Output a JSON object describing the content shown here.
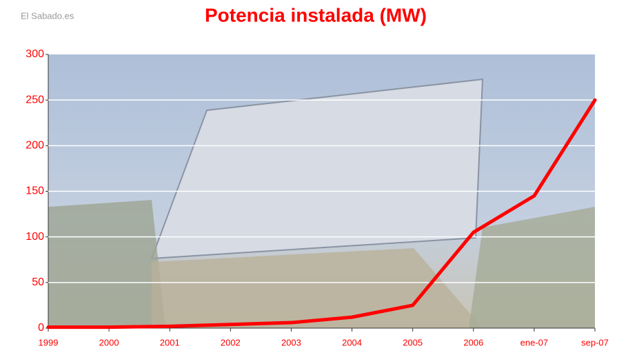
{
  "source": "El Sabado.es",
  "chart_data": {
    "type": "line",
    "title": "Potencia instalada (MW)",
    "categories": [
      "1999",
      "2000",
      "2001",
      "2002",
      "2003",
      "2004",
      "2005",
      "2006",
      "ene-07",
      "sep-07"
    ],
    "values": [
      1,
      1,
      2,
      4,
      6,
      12,
      25,
      105,
      145,
      250
    ],
    "color": "#ff0000",
    "ylim": [
      0,
      300
    ],
    "yticks": [
      0,
      50,
      100,
      150,
      200,
      250,
      300
    ],
    "grid": true
  }
}
